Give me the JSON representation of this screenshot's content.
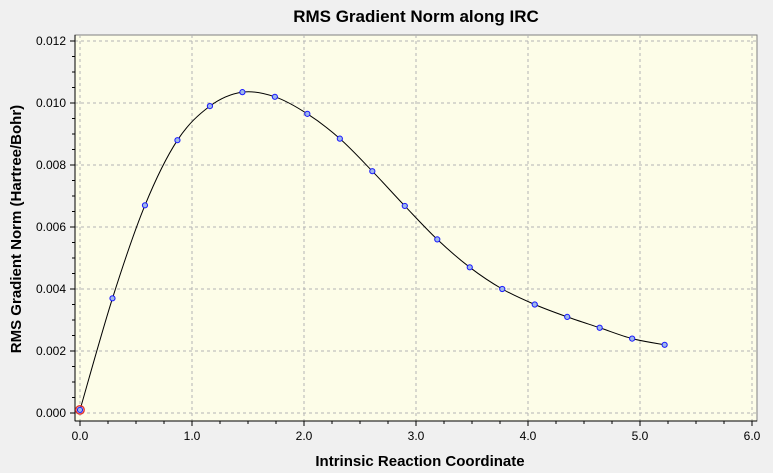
{
  "chart_data": {
    "type": "line",
    "title": "RMS Gradient Norm along IRC",
    "xlabel": "Intrinsic Reaction Coordinate",
    "ylabel": "RMS Gradient Norm (Hartree/Bohr)",
    "xlim": [
      0.0,
      6.0
    ],
    "ylim": [
      0.0,
      0.012
    ],
    "x_ticks": [
      "0.0",
      "1.0",
      "2.0",
      "3.0",
      "4.0",
      "5.0",
      "6.0"
    ],
    "y_ticks": [
      "0.000",
      "0.002",
      "0.004",
      "0.006",
      "0.008",
      "0.010",
      "0.012"
    ],
    "grid": true,
    "grid_style": "dashed",
    "series": [
      {
        "x": [
          0.0,
          0.29,
          0.58,
          0.87,
          1.16,
          1.45,
          1.74,
          2.03,
          2.32,
          2.61,
          2.9,
          3.19,
          3.48,
          3.77,
          4.06,
          4.35,
          4.64,
          4.93,
          5.22
        ],
        "y": [
          0.0001,
          0.0037,
          0.0067,
          0.0088,
          0.0099,
          0.01035,
          0.0102,
          0.00965,
          0.00885,
          0.0078,
          0.00668,
          0.0056,
          0.0047,
          0.004,
          0.0035,
          0.0031,
          0.00275,
          0.0024,
          0.0022
        ],
        "line_color": "#000000",
        "marker_color": "#1a1aff",
        "marker_fill": "#9fb8e8"
      }
    ],
    "highlight_point": {
      "x": 0.0,
      "y": 0.0001,
      "color": "#e03030"
    },
    "colors": {
      "plot_background": "#fdfde8",
      "page_background": "#f0f0f0",
      "grid": "#b4b4b4"
    }
  }
}
